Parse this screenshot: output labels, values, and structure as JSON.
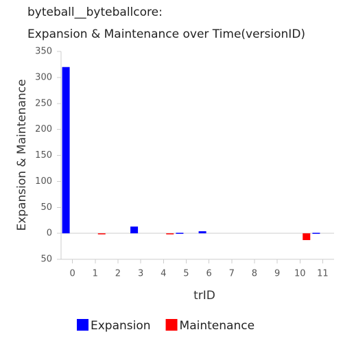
{
  "chart_data": {
    "type": "bar",
    "title": [
      "byteball__byteballcore:",
      "Expansion & Maintenance over Time(versionID)"
    ],
    "x_label": "trID",
    "y_label": "Expansion & Maintenance",
    "categories": [
      "0",
      "1",
      "2",
      "3",
      "4",
      "5",
      "6",
      "7",
      "8",
      "9",
      "10",
      "11"
    ],
    "series": [
      {
        "name": "Expansion",
        "color": "#0000ff",
        "values": [
          320,
          0,
          0,
          13,
          0,
          1,
          4,
          0,
          0,
          0,
          0,
          1
        ]
      },
      {
        "name": "Maintenance",
        "color": "#ff0000",
        "values": [
          0,
          -1,
          0,
          0,
          -1,
          0,
          0,
          0,
          0,
          0,
          -13,
          0
        ]
      }
    ],
    "ylim": [
      -50,
      350
    ],
    "yticks": [
      {
        "value": -50,
        "label": "50"
      },
      0,
      50,
      100,
      150,
      200,
      250,
      300,
      350
    ],
    "grid": false,
    "legend": "bottom"
  }
}
